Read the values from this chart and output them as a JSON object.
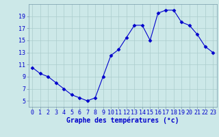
{
  "x": [
    0,
    1,
    2,
    3,
    4,
    5,
    6,
    7,
    8,
    9,
    10,
    11,
    12,
    13,
    14,
    15,
    16,
    17,
    18,
    19,
    20,
    21,
    22,
    23
  ],
  "y": [
    10.5,
    9.5,
    9.0,
    8.0,
    7.0,
    6.0,
    5.5,
    5.0,
    5.5,
    9.0,
    12.5,
    13.5,
    15.5,
    17.5,
    17.5,
    15.0,
    19.5,
    20.0,
    20.0,
    18.0,
    17.5,
    16.0,
    14.0,
    13.0
  ],
  "xlabel": "Graphe des températures (°c)",
  "ylim": [
    4,
    21
  ],
  "xlim": [
    -0.5,
    23.5
  ],
  "yticks": [
    5,
    7,
    9,
    11,
    13,
    15,
    17,
    19
  ],
  "xticks": [
    0,
    1,
    2,
    3,
    4,
    5,
    6,
    7,
    8,
    9,
    10,
    11,
    12,
    13,
    14,
    15,
    16,
    17,
    18,
    19,
    20,
    21,
    22,
    23
  ],
  "line_color": "#0000cc",
  "marker": "D",
  "marker_size": 2.5,
  "bg_color": "#cce8e8",
  "grid_color": "#aacccc",
  "axis_label_color": "#0000cc",
  "tick_label_color": "#0000cc",
  "xlabel_fontsize": 7,
  "tick_fontsize": 6,
  "fig_width": 3.2,
  "fig_height": 2.0,
  "dpi": 100
}
